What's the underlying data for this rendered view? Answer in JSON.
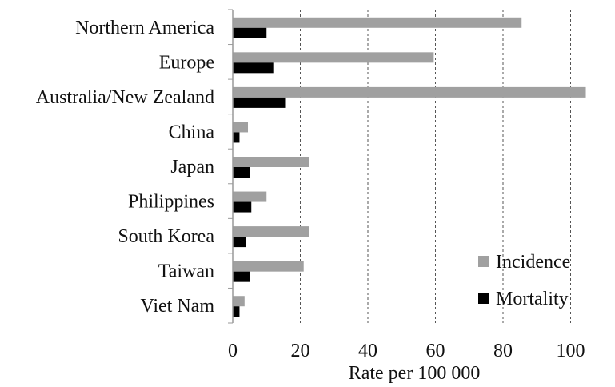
{
  "chart_data": {
    "type": "bar",
    "orientation": "horizontal",
    "title": "",
    "xlabel": "Rate per 100 000",
    "ylabel": "",
    "xlim": [
      0,
      110
    ],
    "x_ticks": [
      0,
      20,
      40,
      60,
      80,
      100
    ],
    "grid": "vertical dashed",
    "legend_position": "bottom-right",
    "categories": [
      "Northern America",
      "Europe",
      "Australia/New Zealand",
      "China",
      "Japan",
      "Philippines",
      "South Korea",
      "Taiwan",
      "Viet Nam"
    ],
    "series": [
      {
        "name": "Incidence",
        "color": "#a0a0a0",
        "values": [
          85.5,
          59.5,
          104.5,
          4.5,
          22.5,
          10,
          22.5,
          21,
          3.5
        ]
      },
      {
        "name": "Mortality",
        "color": "#000000",
        "values": [
          10,
          12,
          15.5,
          2,
          5,
          5.5,
          4,
          5,
          2
        ]
      }
    ]
  }
}
